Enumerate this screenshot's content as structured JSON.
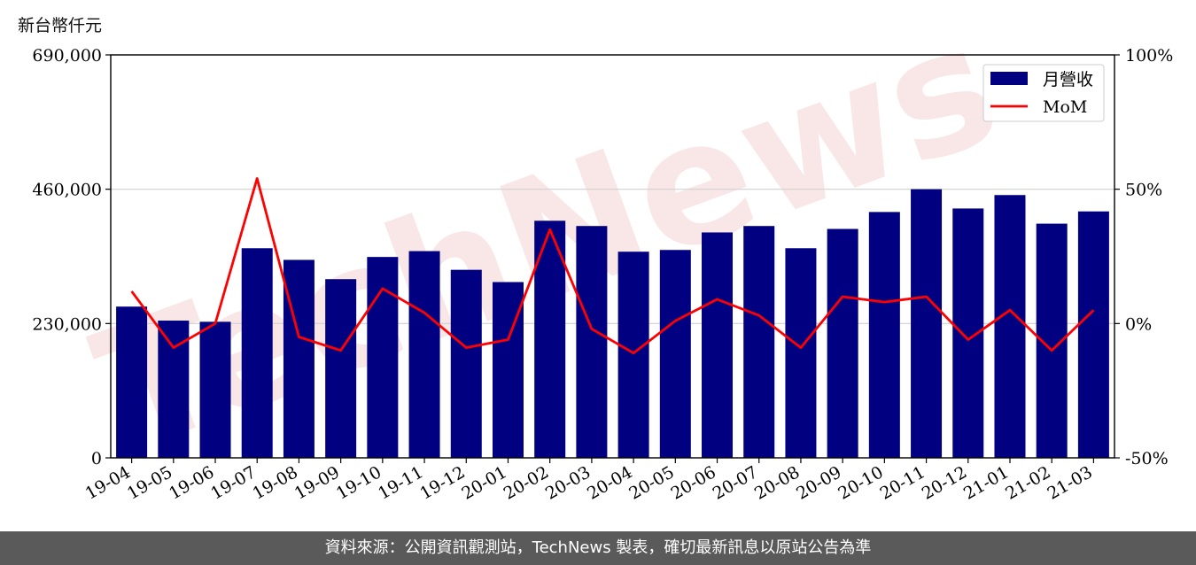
{
  "chart_data": {
    "type": "bar",
    "unit_label": "新台幣仟元",
    "categories": [
      "19-04",
      "19-05",
      "19-06",
      "19-07",
      "19-08",
      "19-09",
      "19-10",
      "19-11",
      "19-12",
      "20-01",
      "20-02",
      "20-03",
      "20-04",
      "20-05",
      "20-06",
      "20-07",
      "20-08",
      "20-09",
      "20-10",
      "20-11",
      "20-12",
      "21-01",
      "21-02",
      "21-03"
    ],
    "series": [
      {
        "name": "月營收",
        "axis": "left",
        "type": "bar",
        "color": "#000080",
        "values": [
          259000,
          235000,
          233000,
          359000,
          339000,
          306000,
          344000,
          354000,
          322000,
          301000,
          406000,
          397000,
          353000,
          356000,
          386000,
          397000,
          359000,
          392000,
          421000,
          460000,
          427000,
          450000,
          401000,
          422000
        ]
      },
      {
        "name": "MoM",
        "axis": "right",
        "type": "line",
        "color": "#ff0000",
        "unit": "%",
        "values": [
          12,
          -9,
          0,
          54,
          -5,
          -10,
          13,
          4,
          -9,
          -6,
          35,
          -2,
          -11,
          1,
          9,
          3,
          -9,
          10,
          8,
          10,
          -6,
          5,
          -10,
          5
        ]
      }
    ],
    "y_left": {
      "ylim": [
        0,
        690000
      ],
      "ticks": [
        "0",
        "230,000",
        "460,000",
        "690,000"
      ]
    },
    "y_right": {
      "ylim": [
        -50,
        100
      ],
      "ticks": [
        "-50%",
        "0%",
        "50%",
        "100%"
      ]
    },
    "grid": "horizontal",
    "legend": "top-right",
    "watermark": "TechNews"
  },
  "footer": {
    "text": "資料來源：公開資訊觀測站，TechNews 製表，確切最新訊息以原站公告為準"
  }
}
